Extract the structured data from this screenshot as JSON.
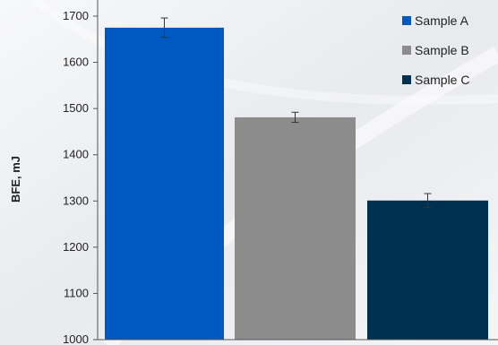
{
  "chart_data": {
    "type": "bar",
    "categories": [
      "Sample A",
      "Sample B",
      "Sample C"
    ],
    "values": [
      1675,
      1481,
      1301
    ],
    "errors": [
      21,
      11,
      15
    ],
    "colors": [
      "#0059c1",
      "#8c8c8c",
      "#00304f"
    ],
    "ylabel": "BFE, mJ",
    "ylim": [
      1000,
      1700
    ],
    "yticks": [
      1000,
      1100,
      1200,
      1300,
      1400,
      1500,
      1600,
      1700
    ],
    "legend": {
      "position": "top-right",
      "entries": [
        "Sample A",
        "Sample B",
        "Sample C"
      ]
    },
    "grid": false
  }
}
